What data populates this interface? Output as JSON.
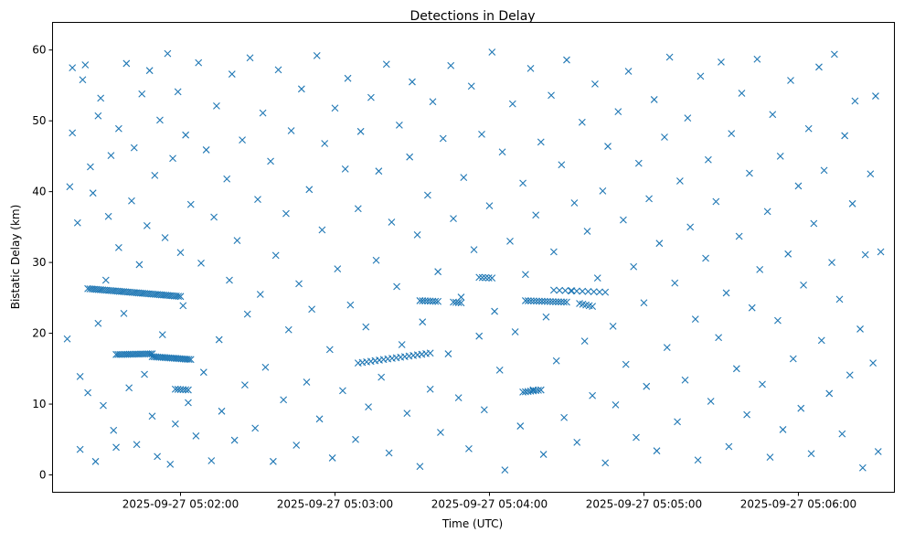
{
  "chart_data": {
    "type": "scatter",
    "title": "Detections in Delay",
    "xlabel": "Time (UTC)",
    "ylabel": "Bistatic Delay (km)",
    "x_unit": "seconds after 2025-09-27 05:00:00",
    "xlim": [
      70.3,
      397.3
    ],
    "ylim": [
      -2.45,
      63.9
    ],
    "x_ticks": [
      {
        "value": 120,
        "label": "2025-09-27 05:02:00"
      },
      {
        "value": 180,
        "label": "2025-09-27 05:03:00"
      },
      {
        "value": 240,
        "label": "2025-09-27 05:04:00"
      },
      {
        "value": 300,
        "label": "2025-09-27 05:05:00"
      },
      {
        "value": 360,
        "label": "2025-09-27 05:06:00"
      }
    ],
    "y_ticks": [
      {
        "value": 0,
        "label": "0"
      },
      {
        "value": 10,
        "label": "10"
      },
      {
        "value": 20,
        "label": "20"
      },
      {
        "value": 30,
        "label": "30"
      },
      {
        "value": 40,
        "label": "40"
      },
      {
        "value": 50,
        "label": "50"
      },
      {
        "value": 60,
        "label": "60"
      }
    ],
    "marker": "x",
    "color": "#1f77b4",
    "grid": false,
    "tracks": [
      {
        "x_start": 84,
        "x_end": 120,
        "y_start": 26.3,
        "y_end": 25.2,
        "n": 45
      },
      {
        "x_start": 95,
        "x_end": 109,
        "y_start": 17.0,
        "y_end": 17.1,
        "n": 20
      },
      {
        "x_start": 109,
        "x_end": 124,
        "y_start": 16.7,
        "y_end": 16.3,
        "n": 22
      },
      {
        "x_start": 118,
        "x_end": 123,
        "y_start": 12.1,
        "y_end": 12.0,
        "n": 6
      },
      {
        "x_start": 189,
        "x_end": 217,
        "y_start": 15.8,
        "y_end": 17.2,
        "n": 18
      },
      {
        "x_start": 213,
        "x_end": 220,
        "y_start": 24.6,
        "y_end": 24.5,
        "n": 8
      },
      {
        "x_start": 226,
        "x_end": 229,
        "y_start": 24.4,
        "y_end": 24.3,
        "n": 4
      },
      {
        "x_start": 236,
        "x_end": 241,
        "y_start": 27.9,
        "y_end": 27.8,
        "n": 5
      },
      {
        "x_start": 254,
        "x_end": 270,
        "y_start": 24.6,
        "y_end": 24.4,
        "n": 16
      },
      {
        "x_start": 265,
        "x_end": 285,
        "y_start": 26.1,
        "y_end": 25.8,
        "n": 10
      },
      {
        "x_start": 253,
        "x_end": 260,
        "y_start": 11.7,
        "y_end": 12.0,
        "n": 8
      },
      {
        "x_start": 275,
        "x_end": 280,
        "y_start": 24.2,
        "y_end": 23.8,
        "n": 5
      }
    ],
    "points": [
      [
        76,
        19.2
      ],
      [
        77,
        40.7
      ],
      [
        78,
        48.3
      ],
      [
        78,
        57.5
      ],
      [
        80,
        35.6
      ],
      [
        81,
        13.9
      ],
      [
        81,
        3.6
      ],
      [
        82,
        55.8
      ],
      [
        83,
        57.9
      ],
      [
        84,
        11.6
      ],
      [
        85,
        43.5
      ],
      [
        86,
        39.8
      ],
      [
        87,
        1.9
      ],
      [
        88,
        50.7
      ],
      [
        88,
        21.4
      ],
      [
        89,
        53.2
      ],
      [
        90,
        9.8
      ],
      [
        91,
        27.5
      ],
      [
        92,
        36.5
      ],
      [
        93,
        45.1
      ],
      [
        94,
        6.3
      ],
      [
        95,
        3.9
      ],
      [
        96,
        48.9
      ],
      [
        96,
        32.1
      ],
      [
        98,
        22.8
      ],
      [
        99,
        58.1
      ],
      [
        100,
        12.3
      ],
      [
        101,
        38.7
      ],
      [
        102,
        46.2
      ],
      [
        103,
        4.3
      ],
      [
        104,
        29.7
      ],
      [
        105,
        53.8
      ],
      [
        106,
        14.2
      ],
      [
        107,
        35.2
      ],
      [
        108,
        57.1
      ],
      [
        109,
        8.3
      ],
      [
        110,
        42.3
      ],
      [
        111,
        2.6
      ],
      [
        112,
        50.1
      ],
      [
        113,
        19.8
      ],
      [
        114,
        33.5
      ],
      [
        115,
        59.5
      ],
      [
        116,
        1.5
      ],
      [
        117,
        44.7
      ],
      [
        118,
        7.2
      ],
      [
        119,
        54.1
      ],
      [
        120,
        31.4
      ],
      [
        121,
        23.9
      ],
      [
        122,
        48.0
      ],
      [
        123,
        10.2
      ],
      [
        124,
        38.2
      ],
      [
        126,
        5.5
      ],
      [
        127,
        58.2
      ],
      [
        128,
        29.9
      ],
      [
        129,
        14.5
      ],
      [
        130,
        45.9
      ],
      [
        132,
        2.0
      ],
      [
        133,
        36.4
      ],
      [
        134,
        52.1
      ],
      [
        135,
        19.1
      ],
      [
        136,
        9.0
      ],
      [
        138,
        41.8
      ],
      [
        139,
        27.5
      ],
      [
        140,
        56.6
      ],
      [
        141,
        4.9
      ],
      [
        142,
        33.1
      ],
      [
        144,
        47.3
      ],
      [
        145,
        12.7
      ],
      [
        146,
        22.7
      ],
      [
        147,
        58.9
      ],
      [
        149,
        6.6
      ],
      [
        150,
        38.9
      ],
      [
        151,
        25.5
      ],
      [
        152,
        51.1
      ],
      [
        153,
        15.2
      ],
      [
        155,
        44.3
      ],
      [
        156,
        1.9
      ],
      [
        157,
        31.0
      ],
      [
        158,
        57.2
      ],
      [
        160,
        10.6
      ],
      [
        161,
        36.9
      ],
      [
        162,
        20.5
      ],
      [
        163,
        48.6
      ],
      [
        165,
        4.2
      ],
      [
        166,
        27.0
      ],
      [
        167,
        54.5
      ],
      [
        169,
        13.1
      ],
      [
        170,
        40.3
      ],
      [
        171,
        23.4
      ],
      [
        173,
        59.2
      ],
      [
        174,
        7.9
      ],
      [
        175,
        34.6
      ],
      [
        176,
        46.8
      ],
      [
        178,
        17.7
      ],
      [
        179,
        2.4
      ],
      [
        180,
        51.8
      ],
      [
        181,
        29.1
      ],
      [
        183,
        11.9
      ],
      [
        184,
        43.2
      ],
      [
        185,
        56.0
      ],
      [
        186,
        24.0
      ],
      [
        188,
        5.0
      ],
      [
        189,
        37.6
      ],
      [
        190,
        48.5
      ],
      [
        192,
        20.9
      ],
      [
        193,
        9.6
      ],
      [
        194,
        53.3
      ],
      [
        196,
        30.3
      ],
      [
        197,
        42.9
      ],
      [
        198,
        13.8
      ],
      [
        200,
        58.0
      ],
      [
        201,
        3.1
      ],
      [
        202,
        35.7
      ],
      [
        204,
        26.6
      ],
      [
        205,
        49.4
      ],
      [
        206,
        18.4
      ],
      [
        208,
        8.7
      ],
      [
        209,
        44.9
      ],
      [
        210,
        55.5
      ],
      [
        212,
        33.9
      ],
      [
        213,
        1.2
      ],
      [
        214,
        21.6
      ],
      [
        216,
        39.5
      ],
      [
        217,
        12.1
      ],
      [
        218,
        52.7
      ],
      [
        220,
        28.7
      ],
      [
        221,
        6.0
      ],
      [
        222,
        47.5
      ],
      [
        224,
        17.1
      ],
      [
        225,
        57.8
      ],
      [
        226,
        36.2
      ],
      [
        228,
        10.9
      ],
      [
        229,
        25.1
      ],
      [
        230,
        42.0
      ],
      [
        232,
        3.7
      ],
      [
        233,
        54.9
      ],
      [
        234,
        31.8
      ],
      [
        236,
        19.6
      ],
      [
        237,
        48.1
      ],
      [
        238,
        9.2
      ],
      [
        240,
        38.0
      ],
      [
        241,
        59.7
      ],
      [
        242,
        23.1
      ],
      [
        244,
        14.8
      ],
      [
        245,
        45.6
      ],
      [
        246,
        0.7
      ],
      [
        248,
        33.0
      ],
      [
        249,
        52.4
      ],
      [
        250,
        20.2
      ],
      [
        252,
        6.9
      ],
      [
        253,
        41.2
      ],
      [
        254,
        28.3
      ],
      [
        256,
        57.4
      ],
      [
        257,
        12.0
      ],
      [
        258,
        36.7
      ],
      [
        260,
        47.0
      ],
      [
        261,
        2.9
      ],
      [
        262,
        22.3
      ],
      [
        264,
        53.6
      ],
      [
        265,
        31.5
      ],
      [
        266,
        16.1
      ],
      [
        268,
        43.8
      ],
      [
        269,
        8.1
      ],
      [
        270,
        58.6
      ],
      [
        272,
        26.0
      ],
      [
        273,
        38.4
      ],
      [
        274,
        4.6
      ],
      [
        276,
        49.8
      ],
      [
        277,
        18.9
      ],
      [
        278,
        34.4
      ],
      [
        280,
        11.2
      ],
      [
        281,
        55.2
      ],
      [
        282,
        27.8
      ],
      [
        284,
        40.1
      ],
      [
        285,
        1.7
      ],
      [
        286,
        46.4
      ],
      [
        288,
        21.0
      ],
      [
        289,
        9.9
      ],
      [
        290,
        51.3
      ],
      [
        292,
        36.0
      ],
      [
        293,
        15.6
      ],
      [
        294,
        57.0
      ],
      [
        296,
        29.4
      ],
      [
        297,
        5.3
      ],
      [
        298,
        44.0
      ],
      [
        300,
        24.3
      ],
      [
        301,
        12.5
      ],
      [
        302,
        39.0
      ],
      [
        304,
        53.0
      ],
      [
        305,
        3.4
      ],
      [
        306,
        32.7
      ],
      [
        308,
        47.7
      ],
      [
        309,
        18.0
      ],
      [
        310,
        59.0
      ],
      [
        312,
        27.1
      ],
      [
        313,
        7.5
      ],
      [
        314,
        41.5
      ],
      [
        316,
        13.4
      ],
      [
        317,
        50.4
      ],
      [
        318,
        35.0
      ],
      [
        320,
        22.0
      ],
      [
        321,
        2.1
      ],
      [
        322,
        56.3
      ],
      [
        324,
        30.6
      ],
      [
        325,
        44.5
      ],
      [
        326,
        10.4
      ],
      [
        328,
        38.6
      ],
      [
        329,
        19.4
      ],
      [
        330,
        58.3
      ],
      [
        332,
        25.7
      ],
      [
        333,
        4.0
      ],
      [
        334,
        48.2
      ],
      [
        336,
        15.0
      ],
      [
        337,
        33.7
      ],
      [
        338,
        53.9
      ],
      [
        340,
        8.5
      ],
      [
        341,
        42.6
      ],
      [
        342,
        23.6
      ],
      [
        344,
        58.7
      ],
      [
        345,
        29.0
      ],
      [
        346,
        12.8
      ],
      [
        348,
        37.2
      ],
      [
        349,
        2.5
      ],
      [
        350,
        50.9
      ],
      [
        352,
        21.8
      ],
      [
        353,
        45.0
      ],
      [
        354,
        6.4
      ],
      [
        356,
        31.2
      ],
      [
        357,
        55.7
      ],
      [
        358,
        16.4
      ],
      [
        360,
        40.8
      ],
      [
        361,
        9.4
      ],
      [
        362,
        26.8
      ],
      [
        364,
        48.9
      ],
      [
        365,
        3.0
      ],
      [
        366,
        35.5
      ],
      [
        368,
        57.6
      ],
      [
        369,
        19.0
      ],
      [
        370,
        43.0
      ],
      [
        372,
        11.5
      ],
      [
        373,
        30.0
      ],
      [
        374,
        59.4
      ],
      [
        376,
        24.8
      ],
      [
        377,
        5.8
      ],
      [
        378,
        47.9
      ],
      [
        380,
        14.1
      ],
      [
        381,
        38.3
      ],
      [
        382,
        52.8
      ],
      [
        384,
        20.6
      ],
      [
        385,
        1.0
      ],
      [
        386,
        31.1
      ],
      [
        388,
        42.5
      ],
      [
        389,
        15.8
      ],
      [
        390,
        53.5
      ],
      [
        391,
        3.3
      ],
      [
        392,
        31.5
      ]
    ]
  }
}
